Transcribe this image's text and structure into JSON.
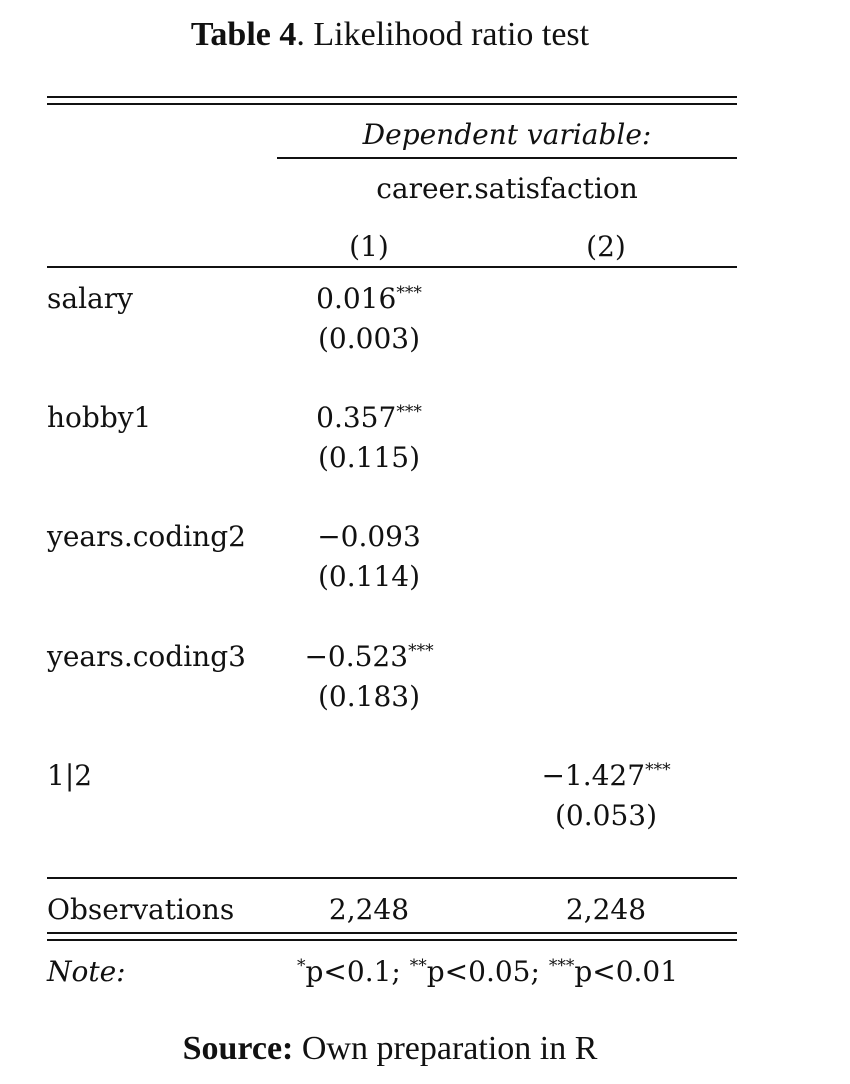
{
  "title": {
    "label": "Table 4",
    "text": ". Likelihood ratio test"
  },
  "table": {
    "dependent_variable_label": "Dependent variable:",
    "dependent_variable": "career.satisfaction",
    "columns": [
      "(1)",
      "(2)"
    ],
    "rows": [
      {
        "name": "salary",
        "col1": {
          "coef": "0.016",
          "stars": "***",
          "se": "(0.003)"
        },
        "col2": {
          "coef": "",
          "stars": "",
          "se": ""
        }
      },
      {
        "name": "hobby1",
        "col1": {
          "coef": "0.357",
          "stars": "***",
          "se": "(0.115)"
        },
        "col2": {
          "coef": "",
          "stars": "",
          "se": ""
        }
      },
      {
        "name": "years.coding2",
        "col1": {
          "coef": "−0.093",
          "stars": "",
          "se": "(0.114)"
        },
        "col2": {
          "coef": "",
          "stars": "",
          "se": ""
        }
      },
      {
        "name": "years.coding3",
        "col1": {
          "coef": "−0.523",
          "stars": "***",
          "se": "(0.183)"
        },
        "col2": {
          "coef": "",
          "stars": "",
          "se": ""
        }
      },
      {
        "name": "1|2",
        "col1": {
          "coef": "",
          "stars": "",
          "se": ""
        },
        "col2": {
          "coef": "−1.427",
          "stars": "***",
          "se": "(0.053)"
        }
      }
    ],
    "observations": {
      "label": "Observations",
      "values": [
        "2,248",
        "2,248"
      ]
    },
    "note": {
      "label": "Note:",
      "stars": [
        "*",
        "**",
        "***"
      ],
      "p_values": [
        "p<0.1; ",
        "p<0.05; ",
        "p<0.01"
      ]
    }
  },
  "source": {
    "label": "Source:",
    "text": " Own preparation in R"
  }
}
